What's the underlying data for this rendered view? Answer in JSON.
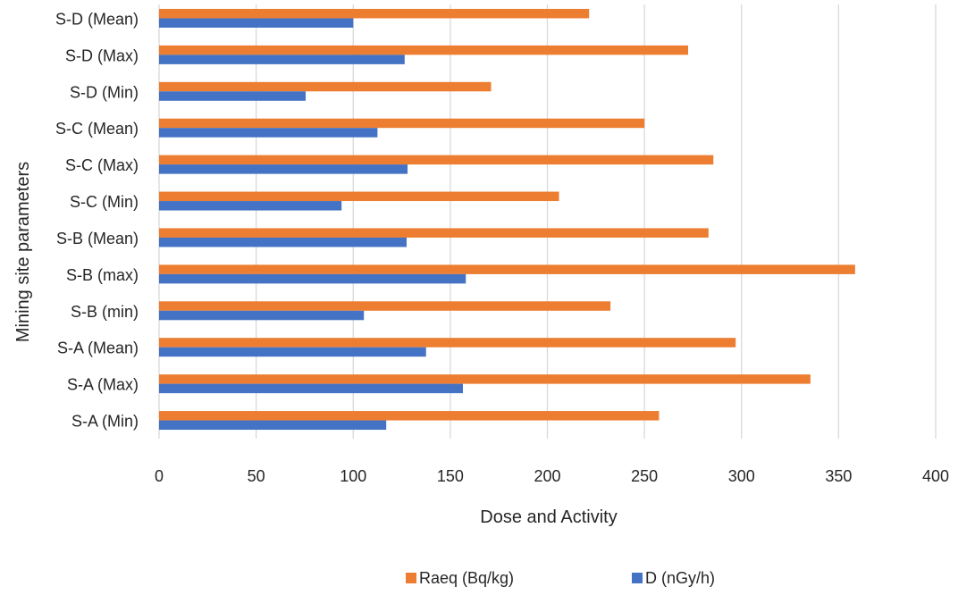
{
  "chart_data": {
    "type": "bar",
    "orientation": "horizontal",
    "categories": [
      "S-A (Min)",
      "S-A (Max)",
      "S-A (Mean)",
      "S-B (min)",
      "S-B (max)",
      "S-B (Mean)",
      "S-C (Min)",
      "S-C (Max)",
      "S-C (Mean)",
      "S-D (Min)",
      "S-D (Max)",
      "S-D (Mean)"
    ],
    "series": [
      {
        "name": "Raeq (Bq/kg)",
        "color": "#ED7D31",
        "values": [
          257.5,
          335.5,
          297,
          232.5,
          358.5,
          283,
          206,
          285.5,
          250,
          171,
          272.5,
          221.5
        ]
      },
      {
        "name": "D (nGy/h)",
        "color": "#4472C4",
        "values": [
          117,
          156.5,
          137.5,
          105.5,
          158,
          127.5,
          94,
          128,
          112.5,
          75.5,
          126.5,
          100
        ]
      }
    ],
    "xlabel": "Dose and Activity",
    "ylabel": "Mining site parameters",
    "xlim": [
      0,
      400
    ],
    "xticks": [
      "0",
      "50",
      "100",
      "150",
      "200",
      "250",
      "300",
      "350",
      "400"
    ],
    "grid": "vertical",
    "legend": "bottom"
  }
}
